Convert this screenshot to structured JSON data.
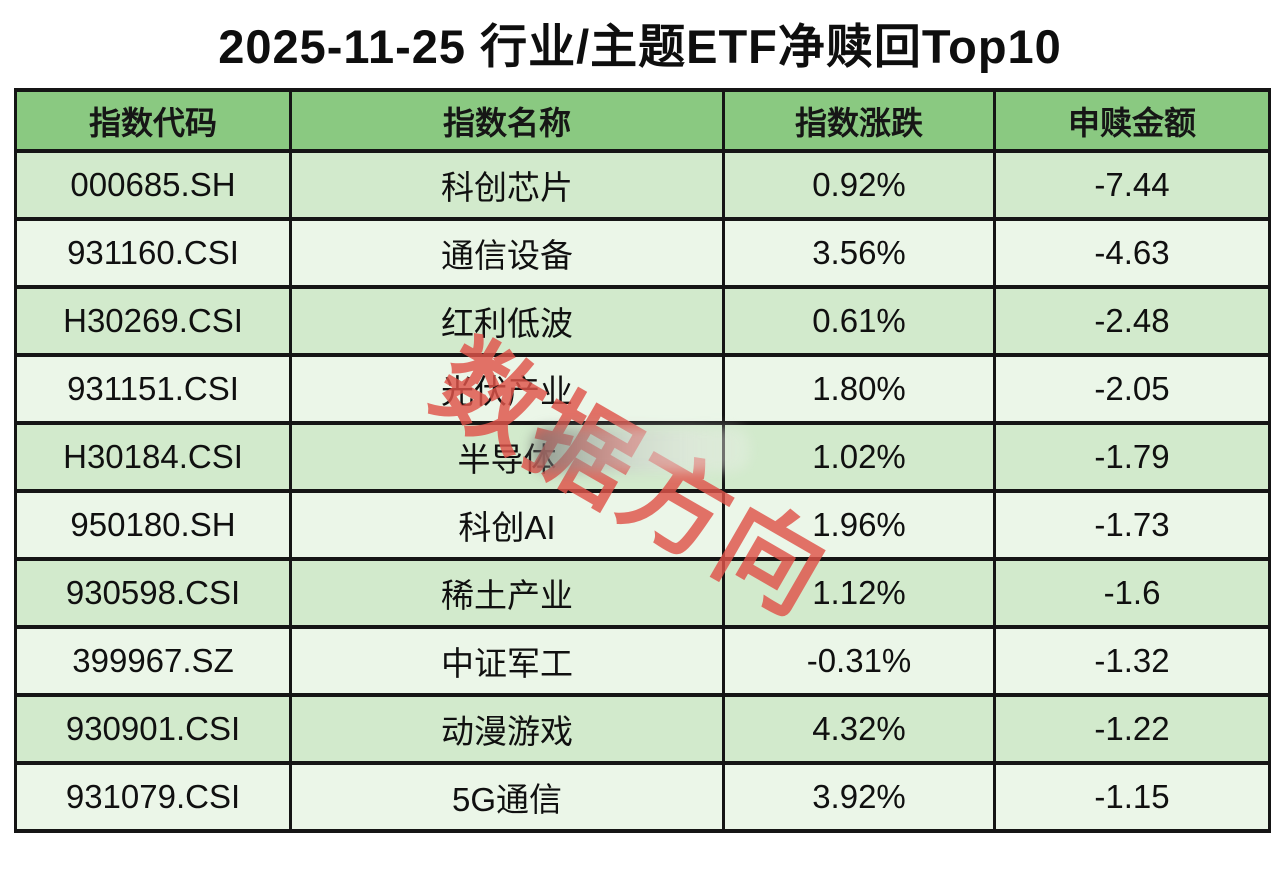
{
  "title": "2025-11-25 行业/主题ETF净赎回Top10",
  "watermark": {
    "text": "数据方向"
  },
  "table": {
    "columns": [
      "指数代码",
      "指数名称",
      "指数涨跌",
      "申赎金额"
    ],
    "rows": [
      {
        "code": "000685.SH",
        "name": "科创芯片",
        "change": "0.92%",
        "amount": "-7.44"
      },
      {
        "code": "931160.CSI",
        "name": "通信设备",
        "change": "3.56%",
        "amount": "-4.63"
      },
      {
        "code": "H30269.CSI",
        "name": "红利低波",
        "change": "0.61%",
        "amount": "-2.48"
      },
      {
        "code": "931151.CSI",
        "name": "光伏产业",
        "change": "1.80%",
        "amount": "-2.05"
      },
      {
        "code": "H30184.CSI",
        "name": "半导体",
        "change": "1.02%",
        "amount": "-1.79"
      },
      {
        "code": "950180.SH",
        "name": "科创AI",
        "change": "1.96%",
        "amount": "-1.73"
      },
      {
        "code": "930598.CSI",
        "name": "稀土产业",
        "change": "1.12%",
        "amount": "-1.6"
      },
      {
        "code": "399967.SZ",
        "name": "中证军工",
        "change": "-0.31%",
        "amount": "-1.32"
      },
      {
        "code": "930901.CSI",
        "name": "动漫游戏",
        "change": "4.32%",
        "amount": "-1.22"
      },
      {
        "code": "931079.CSI",
        "name": "5G通信",
        "change": "3.92%",
        "amount": "-1.15"
      }
    ]
  },
  "chart_data": {
    "type": "table",
    "title": "2025-11-25 行业/主题ETF净赎回Top10",
    "columns": [
      "指数代码",
      "指数名称",
      "指数涨跌",
      "申赎金额"
    ],
    "rows": [
      [
        "000685.SH",
        "科创芯片",
        "0.92%",
        -7.44
      ],
      [
        "931160.CSI",
        "通信设备",
        "3.56%",
        -4.63
      ],
      [
        "H30269.CSI",
        "红利低波",
        "0.61%",
        -2.48
      ],
      [
        "931151.CSI",
        "光伏产业",
        "1.80%",
        -2.05
      ],
      [
        "H30184.CSI",
        "半导体",
        "1.02%",
        -1.79
      ],
      [
        "950180.SH",
        "科创AI",
        "1.96%",
        -1.73
      ],
      [
        "930598.CSI",
        "稀土产业",
        "1.12%",
        -1.6
      ],
      [
        "399967.SZ",
        "中证军工",
        "-0.31%",
        -1.32
      ],
      [
        "930901.CSI",
        "动漫游戏",
        "4.32%",
        -1.22
      ],
      [
        "931079.CSI",
        "5G通信",
        "3.92%",
        -1.15
      ]
    ]
  },
  "colors": {
    "page-bg": "#ffffff",
    "header-bg": "#8ac981",
    "row-odd-bg": "#d2eacc",
    "row-even-bg": "#ebf6e8",
    "border": "#151515",
    "text": "#121212",
    "watermark": "#e0544a"
  }
}
